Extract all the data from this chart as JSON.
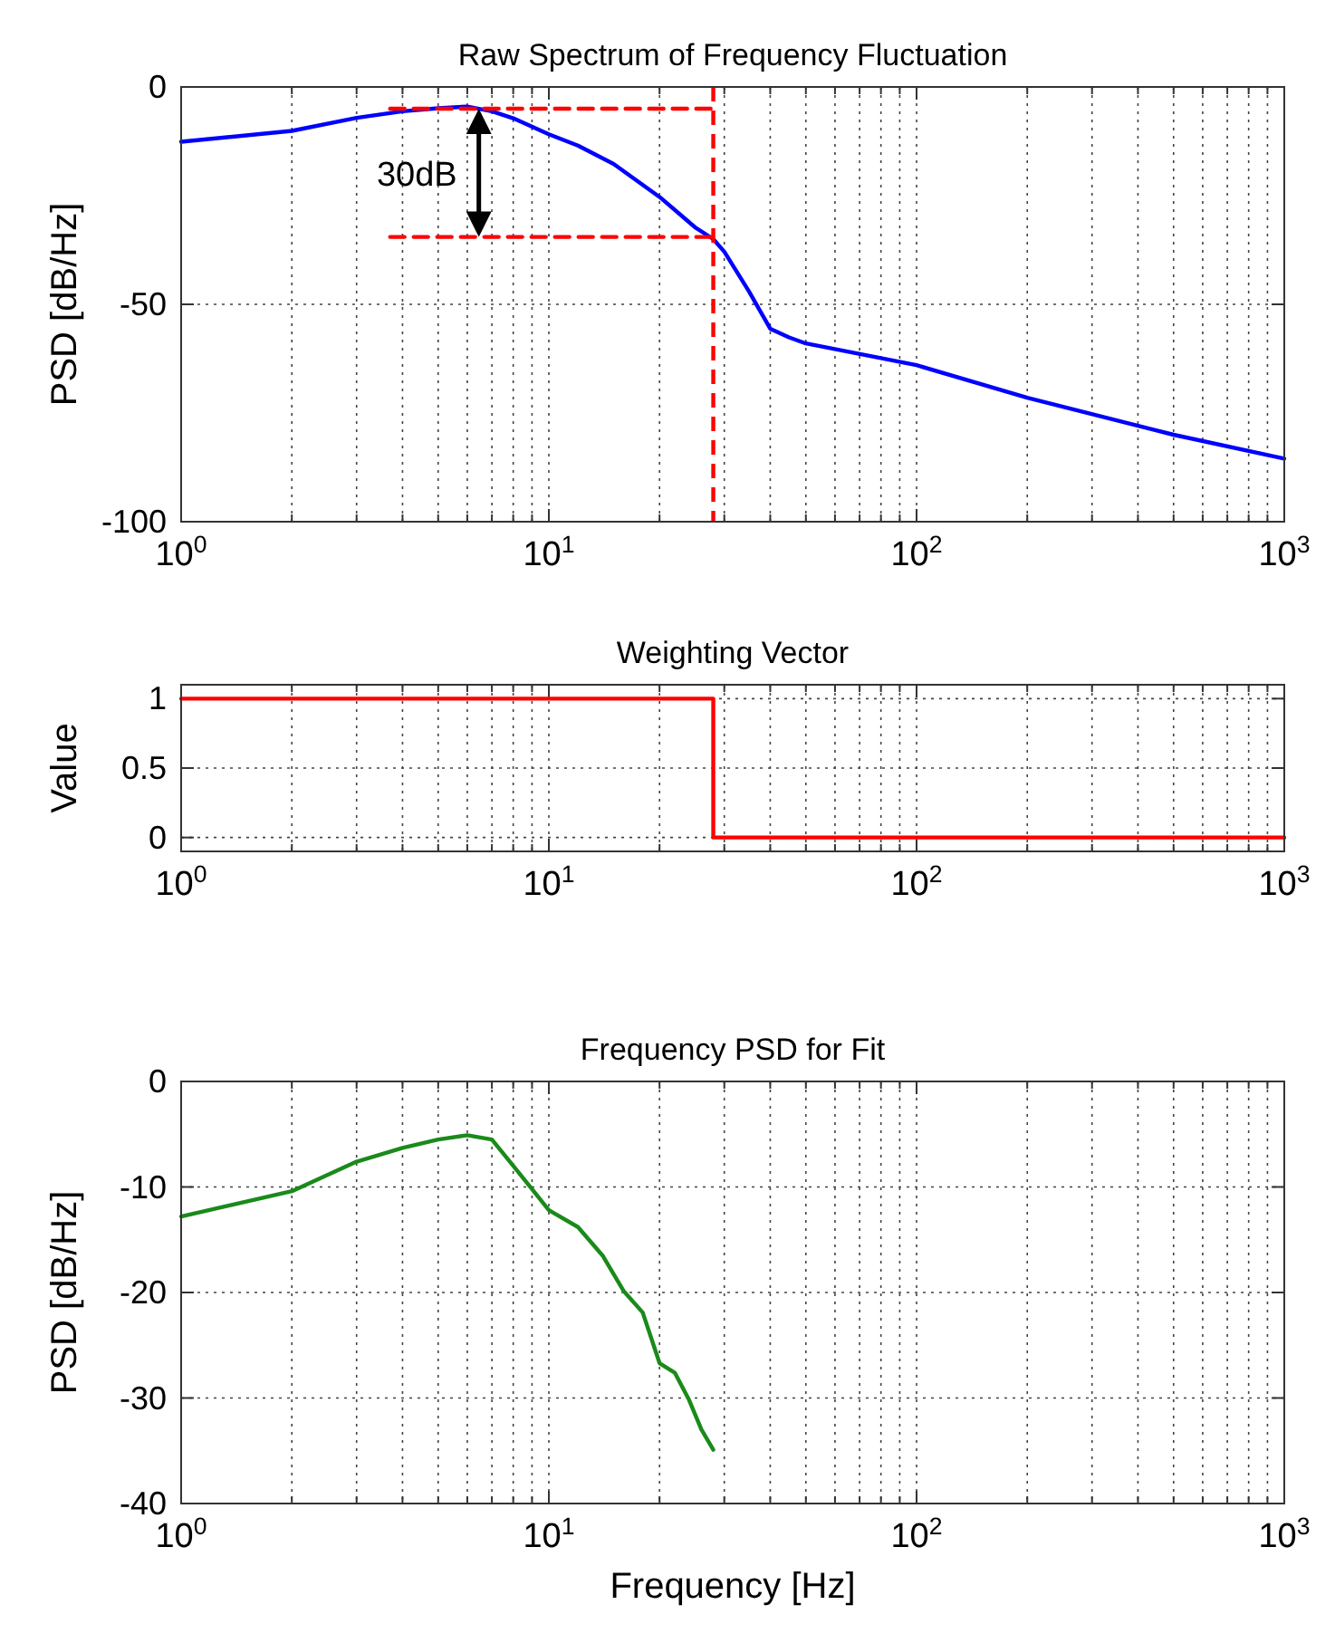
{
  "chart_data": [
    {
      "type": "line",
      "title": "Raw Spectrum of Frequency Fluctuation",
      "ylabel": "PSD [dB/Hz]",
      "log": "x",
      "grid": true,
      "xlim": [
        1,
        1000
      ],
      "xticks": [
        {
          "value": 1,
          "label": "10$^{0}$"
        },
        {
          "value": 10,
          "label": "10$^{1}$"
        },
        {
          "value": 100,
          "label": "10$^{2}$"
        },
        {
          "value": 1000,
          "label": "10$^{3}$"
        }
      ],
      "ylim": [
        -100,
        0
      ],
      "yticks": [
        -100,
        -50,
        0
      ],
      "series": [
        {
          "color": "#0000ff",
          "x": [
            1,
            2,
            3,
            4,
            5,
            6,
            7,
            8,
            10,
            12,
            15,
            20,
            25,
            28,
            30,
            35,
            40,
            45,
            50,
            100,
            200,
            500,
            1000
          ],
          "values": [
            -12.6,
            -10.1,
            -7.1,
            -5.6,
            -4.9,
            -4.5,
            -5.6,
            -7.2,
            -10.9,
            -13.5,
            -17.7,
            -25.3,
            -32.3,
            -35,
            -37.9,
            -47,
            -55.6,
            -57.6,
            -59,
            -64,
            -71.5,
            -80,
            -85.5
          ]
        },
        {
          "color": "#ff0000",
          "line_style": "dashed",
          "x": [
            3.7,
            28
          ],
          "values": [
            -5,
            -5
          ]
        },
        {
          "color": "#ff0000",
          "line_style": "dashed",
          "x": [
            3.7,
            28
          ],
          "values": [
            -34.5,
            -34.5
          ]
        }
      ],
      "ref_lines": [
        {
          "axis": "x",
          "value": 28,
          "color": "#ff0000",
          "line_style": "dashed"
        }
      ],
      "annotations": [
        "30dB"
      ]
    },
    {
      "type": "step",
      "title": "Weighting Vector",
      "ylabel": "Value",
      "log": "x",
      "grid": true,
      "xlim": [
        1,
        1000
      ],
      "xticks": [
        {
          "value": 1,
          "label": "10$^{0}$"
        },
        {
          "value": 10,
          "label": "10$^{1}$"
        },
        {
          "value": 100,
          "label": "10$^{2}$"
        },
        {
          "value": 1000,
          "label": "10$^{3}$"
        }
      ],
      "ylim": [
        -0.1,
        1.1
      ],
      "yticks": [
        0,
        0.5,
        1
      ],
      "series": [
        {
          "color": "#ff0000",
          "x": [
            1,
            28,
            1000
          ],
          "values": [
            1,
            0,
            0
          ]
        }
      ]
    },
    {
      "type": "line",
      "title": "Frequency PSD for Fit",
      "xlabel": "Frequency [Hz]",
      "ylabel": "PSD [dB/Hz]",
      "log": "x",
      "grid": true,
      "xlim": [
        1,
        1000
      ],
      "xticks": [
        {
          "value": 1,
          "label": "10$^{0}$"
        },
        {
          "value": 10,
          "label": "10$^{1}$"
        },
        {
          "value": 100,
          "label": "10$^{2}$"
        },
        {
          "value": 1000,
          "label": "10$^{3}$"
        }
      ],
      "ylim": [
        -40,
        0
      ],
      "yticks": [
        -40,
        -30,
        -20,
        -10,
        0
      ],
      "series": [
        {
          "color": "#1a8a1a",
          "x": [
            1,
            2,
            3,
            4,
            5,
            6,
            7,
            8,
            9,
            10,
            12,
            14,
            16,
            18,
            20,
            22,
            24,
            26,
            28
          ],
          "values": [
            -12.8,
            -10.4,
            -7.6,
            -6.3,
            -5.5,
            -5.1,
            -5.5,
            -8,
            -10.2,
            -12.2,
            -13.8,
            -16.5,
            -19.9,
            -21.9,
            -26.7,
            -27.6,
            -30.1,
            -33,
            -34.9
          ]
        }
      ]
    }
  ]
}
